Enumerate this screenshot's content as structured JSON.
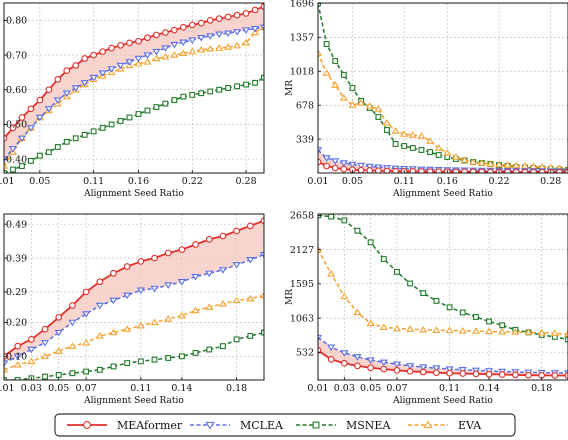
{
  "chart_data": [
    {
      "type": "line",
      "panel": "top-left",
      "xlabel": "Alignment Seed Ratio",
      "ylabel": "",
      "xlim": [
        0.01,
        0.3
      ],
      "ylim": [
        0.36,
        0.85
      ],
      "xticks": [
        0.01,
        0.05,
        0.11,
        0.16,
        0.22,
        0.28
      ],
      "xtick_labels": [
        "0.01",
        "0.05",
        "0.11",
        "0.16",
        "0.22",
        "0.28"
      ],
      "yticks": [
        0.4,
        0.5,
        0.6,
        0.7,
        0.8
      ],
      "ytick_labels": [
        "0.40",
        "0.50",
        "0.60",
        "0.70",
        "0.80"
      ],
      "grid": true,
      "shade_between": [
        "MEAformer",
        "MCLEA"
      ],
      "x": [
        0.01,
        0.02,
        0.03,
        0.04,
        0.05,
        0.06,
        0.07,
        0.08,
        0.09,
        0.1,
        0.11,
        0.12,
        0.13,
        0.14,
        0.15,
        0.16,
        0.17,
        0.18,
        0.19,
        0.2,
        0.21,
        0.22,
        0.23,
        0.24,
        0.25,
        0.26,
        0.27,
        0.28,
        0.29,
        0.3
      ],
      "series": [
        {
          "name": "MEAformer",
          "values": [
            0.46,
            0.49,
            0.52,
            0.545,
            0.57,
            0.6,
            0.63,
            0.655,
            0.67,
            0.69,
            0.7,
            0.71,
            0.72,
            0.728,
            0.735,
            0.74,
            0.75,
            0.758,
            0.765,
            0.772,
            0.78,
            0.787,
            0.792,
            0.8,
            0.805,
            0.81,
            0.815,
            0.82,
            0.83,
            0.84
          ]
        },
        {
          "name": "MCLEA",
          "values": [
            0.4,
            0.43,
            0.46,
            0.49,
            0.52,
            0.545,
            0.57,
            0.59,
            0.605,
            0.62,
            0.635,
            0.648,
            0.66,
            0.67,
            0.68,
            0.69,
            0.7,
            0.71,
            0.72,
            0.73,
            0.737,
            0.743,
            0.75,
            0.755,
            0.76,
            0.763,
            0.767,
            0.772,
            0.776,
            0.78
          ]
        },
        {
          "name": "MSNEA",
          "values": [
            0.36,
            0.37,
            0.38,
            0.395,
            0.41,
            0.42,
            0.435,
            0.45,
            0.46,
            0.47,
            0.48,
            0.49,
            0.5,
            0.51,
            0.52,
            0.53,
            0.54,
            0.55,
            0.56,
            0.57,
            0.58,
            0.585,
            0.59,
            0.595,
            0.6,
            0.605,
            0.61,
            0.615,
            0.62,
            0.635
          ]
        },
        {
          "name": "EVA",
          "values": [
            0.38,
            0.42,
            0.46,
            0.49,
            0.52,
            0.54,
            0.56,
            0.58,
            0.6,
            0.615,
            0.63,
            0.64,
            0.65,
            0.66,
            0.67,
            0.675,
            0.68,
            0.69,
            0.695,
            0.7,
            0.705,
            0.71,
            0.715,
            0.718,
            0.72,
            0.723,
            0.727,
            0.735,
            0.765,
            0.78
          ]
        }
      ]
    },
    {
      "type": "line",
      "panel": "top-right",
      "xlabel": "Alignment Seed Ratio",
      "ylabel": "MR",
      "xlim": [
        0.01,
        0.3
      ],
      "ylim": [
        0,
        1700
      ],
      "xticks": [
        0.01,
        0.05,
        0.11,
        0.16,
        0.22,
        0.28
      ],
      "xtick_labels": [
        "0.01",
        "0.05",
        "0.11",
        "0.16",
        "0.22",
        "0.28"
      ],
      "yticks": [
        339,
        678,
        1018,
        1357,
        1696
      ],
      "ytick_labels": [
        "339",
        "678",
        "1018",
        "1357",
        "1696"
      ],
      "grid": true,
      "shade_between": [
        "MEAformer",
        "MCLEA"
      ],
      "x": [
        0.01,
        0.02,
        0.03,
        0.04,
        0.05,
        0.06,
        0.07,
        0.08,
        0.09,
        0.1,
        0.11,
        0.12,
        0.13,
        0.14,
        0.15,
        0.16,
        0.17,
        0.18,
        0.19,
        0.2,
        0.21,
        0.22,
        0.23,
        0.24,
        0.25,
        0.26,
        0.27,
        0.28,
        0.29,
        0.3
      ],
      "series": [
        {
          "name": "MEAformer",
          "values": [
            110,
            70,
            50,
            40,
            32,
            28,
            25,
            22,
            20,
            18,
            17,
            16,
            15,
            14,
            13,
            13,
            12,
            12,
            11,
            11,
            10,
            10,
            10,
            9,
            9,
            9,
            8,
            8,
            8,
            8
          ]
        },
        {
          "name": "MCLEA",
          "values": [
            230,
            150,
            120,
            100,
            85,
            75,
            65,
            58,
            52,
            47,
            43,
            40,
            37,
            35,
            33,
            31,
            29,
            28,
            27,
            26,
            25,
            24,
            23,
            22,
            21,
            20,
            20,
            19,
            19,
            18
          ]
        },
        {
          "name": "MSNEA",
          "values": [
            1696,
            1290,
            1120,
            980,
            850,
            720,
            650,
            560,
            430,
            290,
            270,
            250,
            230,
            210,
            180,
            160,
            140,
            125,
            110,
            100,
            90,
            80,
            70,
            60,
            55,
            50,
            45,
            40,
            35,
            30
          ]
        },
        {
          "name": "EVA",
          "values": [
            1200,
            1000,
            880,
            750,
            680,
            700,
            670,
            640,
            500,
            420,
            390,
            380,
            370,
            320,
            250,
            200,
            160,
            130,
            110,
            100,
            90,
            85,
            80,
            75,
            70,
            65,
            60,
            55,
            50,
            40
          ]
        }
      ]
    },
    {
      "type": "line",
      "panel": "bottom-left",
      "xlabel": "Alignment Seed Ratio",
      "ylabel": "",
      "xlim": [
        0.01,
        0.2
      ],
      "ylim": [
        0.03,
        0.52
      ],
      "xticks": [
        0.01,
        0.03,
        0.05,
        0.07,
        0.11,
        0.14,
        0.18
      ],
      "xtick_labels": [
        "0.01",
        "0.03",
        "0.05",
        "0.07",
        "0.11",
        "0.14",
        "0.18"
      ],
      "yticks": [
        0.1,
        0.2,
        0.29,
        0.39,
        0.49
      ],
      "ytick_labels": [
        "0.10",
        "0.20",
        "0.29",
        "0.39",
        "0.49"
      ],
      "grid": true,
      "shade_between": [
        "MEAformer",
        "MCLEA"
      ],
      "x": [
        0.01,
        0.02,
        0.03,
        0.04,
        0.05,
        0.06,
        0.07,
        0.08,
        0.09,
        0.1,
        0.11,
        0.12,
        0.13,
        0.14,
        0.15,
        0.16,
        0.17,
        0.18,
        0.19,
        0.2
      ],
      "series": [
        {
          "name": "MEAformer",
          "values": [
            0.1,
            0.13,
            0.15,
            0.18,
            0.215,
            0.25,
            0.29,
            0.32,
            0.345,
            0.365,
            0.38,
            0.39,
            0.405,
            0.415,
            0.43,
            0.445,
            0.455,
            0.47,
            0.485,
            0.5
          ]
        },
        {
          "name": "MCLEA",
          "values": [
            0.08,
            0.1,
            0.12,
            0.14,
            0.17,
            0.2,
            0.225,
            0.25,
            0.265,
            0.28,
            0.295,
            0.3,
            0.31,
            0.32,
            0.335,
            0.345,
            0.355,
            0.37,
            0.385,
            0.4
          ]
        },
        {
          "name": "MSNEA",
          "values": [
            0.03,
            0.03,
            0.035,
            0.04,
            0.045,
            0.05,
            0.055,
            0.06,
            0.07,
            0.08,
            0.085,
            0.09,
            0.095,
            0.1,
            0.11,
            0.12,
            0.13,
            0.15,
            0.16,
            0.17
          ]
        },
        {
          "name": "EVA",
          "values": [
            0.06,
            0.075,
            0.085,
            0.1,
            0.115,
            0.13,
            0.14,
            0.16,
            0.17,
            0.18,
            0.19,
            0.2,
            0.21,
            0.22,
            0.235,
            0.245,
            0.255,
            0.265,
            0.27,
            0.28
          ]
        }
      ]
    },
    {
      "type": "line",
      "panel": "bottom-right",
      "xlabel": "Alignment Seed Ratio",
      "ylabel": "MR",
      "xlim": [
        0.01,
        0.2
      ],
      "ylim": [
        100,
        2680
      ],
      "xticks": [
        0.01,
        0.03,
        0.05,
        0.07,
        0.11,
        0.14,
        0.18
      ],
      "xtick_labels": [
        "0.01",
        "0.03",
        "0.05",
        "0.07",
        "0.11",
        "0.14",
        "0.18"
      ],
      "yticks": [
        532,
        1063,
        1595,
        2127,
        2658
      ],
      "ytick_labels": [
        "532",
        "1063",
        "1595",
        "2127",
        "2658"
      ],
      "grid": true,
      "shade_between": [
        "MEAformer",
        "MCLEA"
      ],
      "x": [
        0.01,
        0.02,
        0.03,
        0.04,
        0.05,
        0.06,
        0.07,
        0.08,
        0.09,
        0.1,
        0.11,
        0.12,
        0.13,
        0.14,
        0.15,
        0.16,
        0.17,
        0.18,
        0.19,
        0.2
      ],
      "series": [
        {
          "name": "MEAformer",
          "values": [
            560,
            420,
            360,
            320,
            290,
            270,
            250,
            235,
            225,
            215,
            205,
            200,
            195,
            190,
            185,
            180,
            175,
            172,
            170,
            168
          ]
        },
        {
          "name": "MCLEA",
          "values": [
            760,
            610,
            520,
            460,
            410,
            375,
            345,
            320,
            300,
            285,
            270,
            260,
            250,
            240,
            232,
            225,
            220,
            215,
            212,
            210
          ]
        },
        {
          "name": "MSNEA",
          "values": [
            2658,
            2640,
            2580,
            2420,
            2240,
            1980,
            1780,
            1600,
            1450,
            1330,
            1230,
            1150,
            1080,
            1010,
            950,
            880,
            840,
            800,
            770,
            730
          ]
        },
        {
          "name": "EVA",
          "values": [
            2127,
            1750,
            1400,
            1150,
            980,
            920,
            900,
            890,
            880,
            875,
            870,
            865,
            860,
            855,
            850,
            845,
            840,
            835,
            825,
            815
          ]
        }
      ]
    }
  ],
  "legend": {
    "placement": "bottom",
    "items": [
      {
        "label": "MEAformer",
        "color": "#e0302b",
        "marker": "circle",
        "dash": "solid"
      },
      {
        "label": "MCLEA",
        "color": "#5a6fe6",
        "marker": "triangle-down",
        "dash": "dashed"
      },
      {
        "label": "MSNEA",
        "color": "#217a2a",
        "marker": "square",
        "dash": "dashed"
      },
      {
        "label": "EVA",
        "color": "#f5a12e",
        "marker": "triangle-up",
        "dash": "dashed"
      }
    ]
  },
  "colors": {
    "MEAformer": "#e0302b",
    "MCLEA": "#5a6fe6",
    "MSNEA": "#217a2a",
    "EVA": "#f5a12e",
    "shade": "#f4c6bd"
  }
}
